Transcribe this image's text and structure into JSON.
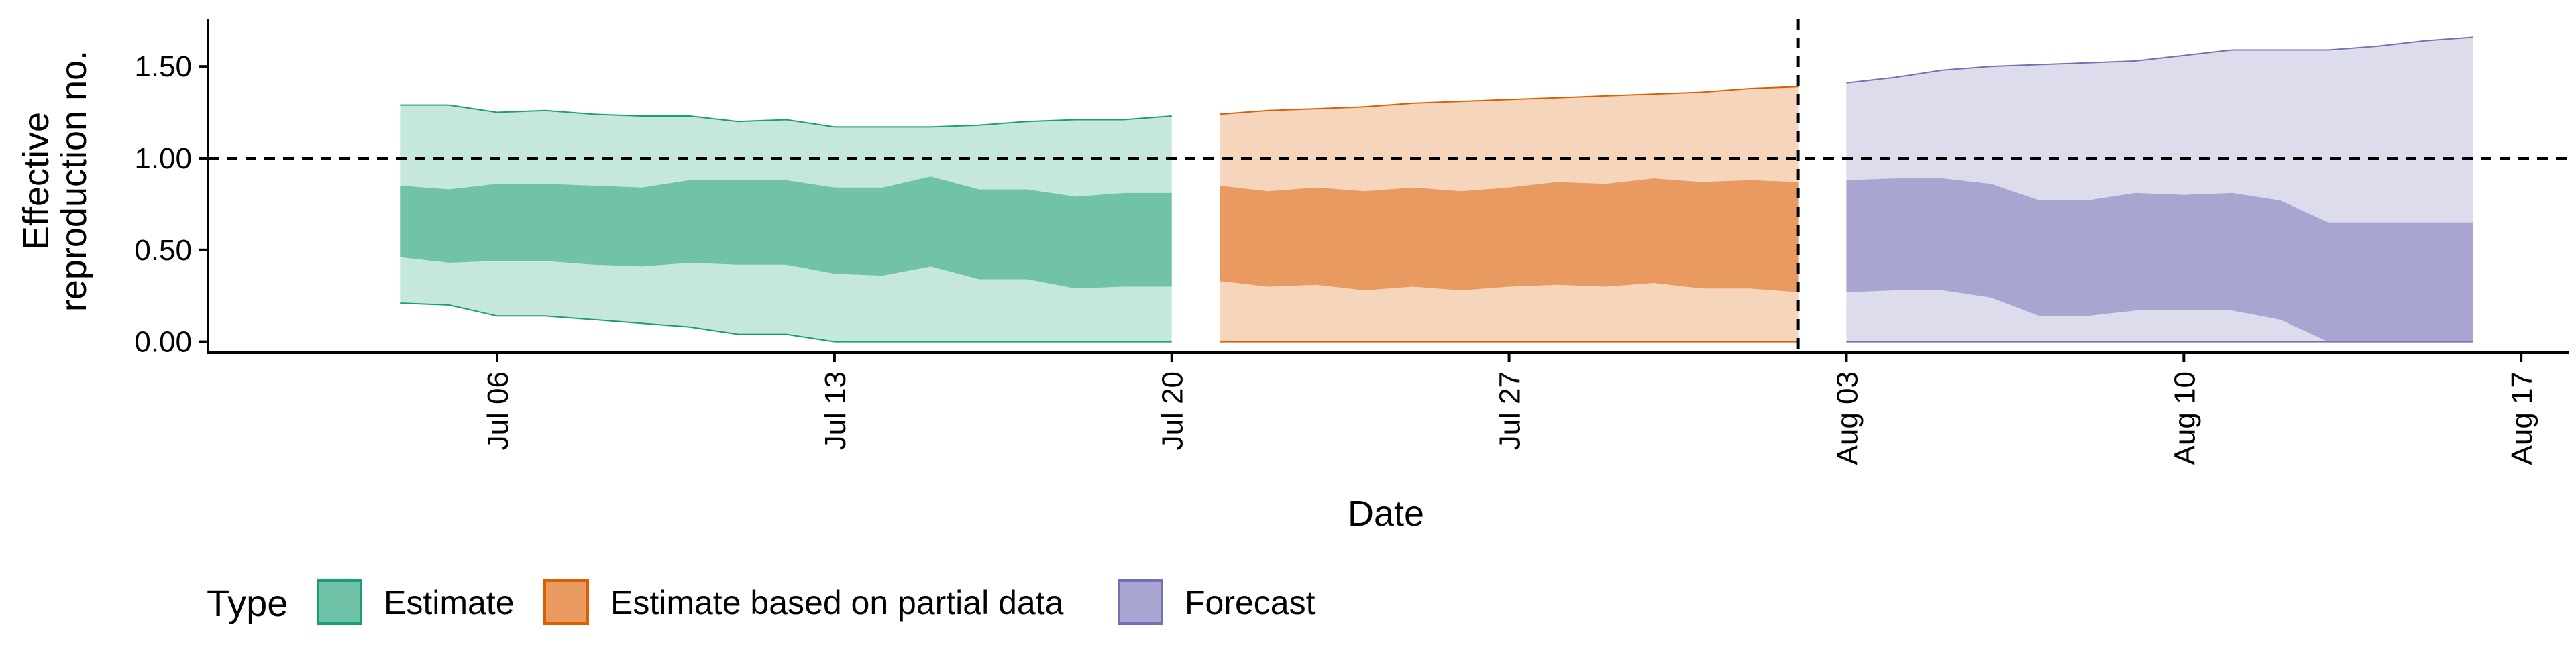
{
  "chart_data": {
    "type": "area",
    "title": "",
    "xlabel": "Date",
    "ylabel_lines": [
      "Effective",
      "reproduction no."
    ],
    "xlim": [
      "2021-06-30",
      "2021-08-18"
    ],
    "ylim": [
      -0.06,
      1.76
    ],
    "x_ticks": [
      {
        "date": "2021-07-06",
        "label": "Jul 06"
      },
      {
        "date": "2021-07-13",
        "label": "Jul 13"
      },
      {
        "date": "2021-07-20",
        "label": "Jul 20"
      },
      {
        "date": "2021-07-27",
        "label": "Jul 27"
      },
      {
        "date": "2021-08-03",
        "label": "Aug 03"
      },
      {
        "date": "2021-08-10",
        "label": "Aug 10"
      },
      {
        "date": "2021-08-17",
        "label": "Aug 17"
      }
    ],
    "y_ticks": [
      {
        "value": 0.0,
        "label": "0.00"
      },
      {
        "value": 0.5,
        "label": "0.50"
      },
      {
        "value": 1.0,
        "label": "1.00"
      },
      {
        "value": 1.5,
        "label": "1.50"
      }
    ],
    "reference_lines": [
      {
        "axis": "y",
        "value": 1.0,
        "style": "dashed"
      },
      {
        "axis": "x",
        "value": "2021-08-02",
        "style": "dashed"
      }
    ],
    "grid": false,
    "legend": {
      "title": "Type",
      "position": "bottom-left"
    },
    "series": [
      {
        "name": "Estimate",
        "fill_outer": "#c6e8dc",
        "fill_inner": "#70c2a9",
        "stroke": "#1b9e77",
        "x": [
          "2021-07-04",
          "2021-07-05",
          "2021-07-06",
          "2021-07-07",
          "2021-07-08",
          "2021-07-09",
          "2021-07-10",
          "2021-07-11",
          "2021-07-12",
          "2021-07-13",
          "2021-07-14",
          "2021-07-15",
          "2021-07-16",
          "2021-07-17",
          "2021-07-18",
          "2021-07-19",
          "2021-07-20"
        ],
        "lower_90": [
          0.21,
          0.2,
          0.14,
          0.14,
          0.12,
          0.1,
          0.08,
          0.04,
          0.04,
          0.0,
          0.0,
          0.0,
          0.0,
          0.0,
          0.0,
          0.0,
          0.0
        ],
        "lower_50": [
          0.46,
          0.43,
          0.44,
          0.44,
          0.42,
          0.41,
          0.43,
          0.42,
          0.42,
          0.37,
          0.36,
          0.41,
          0.34,
          0.34,
          0.29,
          0.3,
          0.3
        ],
        "upper_50": [
          0.85,
          0.83,
          0.86,
          0.86,
          0.85,
          0.84,
          0.88,
          0.88,
          0.88,
          0.84,
          0.84,
          0.9,
          0.83,
          0.83,
          0.79,
          0.81,
          0.81
        ],
        "upper_90": [
          1.29,
          1.29,
          1.25,
          1.26,
          1.24,
          1.23,
          1.23,
          1.2,
          1.21,
          1.17,
          1.17,
          1.17,
          1.18,
          1.2,
          1.21,
          1.21,
          1.23
        ]
      },
      {
        "name": "Estimate based on partial data",
        "fill_outer": "#f6d5bd",
        "fill_inner": "#e89a61",
        "stroke": "#d95f02",
        "x": [
          "2021-07-21",
          "2021-07-22",
          "2021-07-23",
          "2021-07-24",
          "2021-07-25",
          "2021-07-26",
          "2021-07-27",
          "2021-07-28",
          "2021-07-29",
          "2021-07-30",
          "2021-07-31",
          "2021-08-01",
          "2021-08-02"
        ],
        "lower_90": [
          0.0,
          0.0,
          0.0,
          0.0,
          0.0,
          0.0,
          0.0,
          0.0,
          0.0,
          0.0,
          0.0,
          0.0,
          0.0
        ],
        "lower_50": [
          0.33,
          0.3,
          0.31,
          0.28,
          0.3,
          0.28,
          0.3,
          0.31,
          0.3,
          0.32,
          0.29,
          0.29,
          0.27
        ],
        "upper_50": [
          0.85,
          0.82,
          0.84,
          0.82,
          0.84,
          0.82,
          0.84,
          0.87,
          0.86,
          0.89,
          0.87,
          0.88,
          0.87
        ],
        "upper_90": [
          1.24,
          1.26,
          1.27,
          1.28,
          1.3,
          1.31,
          1.32,
          1.33,
          1.34,
          1.35,
          1.36,
          1.38,
          1.39
        ]
      },
      {
        "name": "Forecast",
        "fill_outer": "#dddcec",
        "fill_inner": "#a8a5d1",
        "stroke": "#7570b3",
        "x": [
          "2021-08-03",
          "2021-08-04",
          "2021-08-05",
          "2021-08-06",
          "2021-08-07",
          "2021-08-08",
          "2021-08-09",
          "2021-08-10",
          "2021-08-11",
          "2021-08-12",
          "2021-08-13",
          "2021-08-14",
          "2021-08-15",
          "2021-08-16"
        ],
        "lower_90": [
          0.0,
          0.0,
          0.0,
          0.0,
          0.0,
          0.0,
          0.0,
          0.0,
          0.0,
          0.0,
          0.0,
          0.0,
          0.0,
          0.0
        ],
        "lower_50": [
          0.27,
          0.28,
          0.28,
          0.24,
          0.14,
          0.14,
          0.17,
          0.17,
          0.17,
          0.12,
          0.0,
          0.0,
          0.0,
          0.0
        ],
        "upper_50": [
          0.88,
          0.89,
          0.89,
          0.86,
          0.77,
          0.77,
          0.81,
          0.8,
          0.81,
          0.77,
          0.65,
          0.65,
          0.65,
          0.65
        ],
        "upper_90": [
          1.41,
          1.44,
          1.48,
          1.5,
          1.51,
          1.52,
          1.53,
          1.56,
          1.59,
          1.59,
          1.59,
          1.61,
          1.64,
          1.66
        ]
      }
    ]
  }
}
